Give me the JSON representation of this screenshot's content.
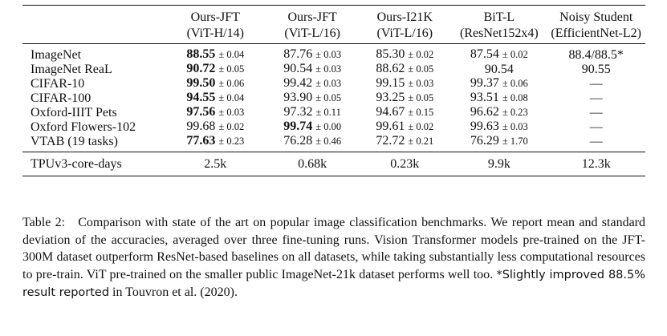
{
  "table": {
    "header": [
      {
        "line1": "",
        "line2": ""
      },
      {
        "line1": "Ours-JFT",
        "line2": "(ViT-H/14)"
      },
      {
        "line1": "Ours-JFT",
        "line2": "(ViT-L/16)"
      },
      {
        "line1": "Ours-I21K",
        "line2": "(ViT-L/16)"
      },
      {
        "line1": "BiT-L",
        "line2": "(ResNet152x4)"
      },
      {
        "line1": "Noisy Student",
        "line2": "(EfficientNet-L2)"
      }
    ],
    "rows": [
      {
        "label": "ImageNet",
        "cells": [
          {
            "value": "88.55",
            "pm": "± 0.04",
            "bold": true
          },
          {
            "value": "87.76",
            "pm": "± 0.03",
            "bold": false
          },
          {
            "value": "85.30",
            "pm": "± 0.02",
            "bold": false
          },
          {
            "value": "87.54",
            "pm": "± 0.02",
            "bold": false
          },
          {
            "value": "88.4/88.5*",
            "pm": "",
            "bold": false
          }
        ]
      },
      {
        "label": "ImageNet ReaL",
        "cells": [
          {
            "value": "90.72",
            "pm": "± 0.05",
            "bold": true
          },
          {
            "value": "90.54",
            "pm": "± 0.03",
            "bold": false
          },
          {
            "value": "88.62",
            "pm": "± 0.05",
            "bold": false
          },
          {
            "value": "90.54",
            "pm": "",
            "bold": false
          },
          {
            "value": "90.55",
            "pm": "",
            "bold": false
          }
        ]
      },
      {
        "label": "CIFAR-10",
        "cells": [
          {
            "value": "99.50",
            "pm": "± 0.06",
            "bold": true
          },
          {
            "value": "99.42",
            "pm": "± 0.03",
            "bold": false
          },
          {
            "value": "99.15",
            "pm": "± 0.03",
            "bold": false
          },
          {
            "value": "99.37",
            "pm": "± 0.06",
            "bold": false
          },
          {
            "value": "—",
            "pm": "",
            "bold": false
          }
        ]
      },
      {
        "label": "CIFAR-100",
        "cells": [
          {
            "value": "94.55",
            "pm": "± 0.04",
            "bold": true
          },
          {
            "value": "93.90",
            "pm": "± 0.05",
            "bold": false
          },
          {
            "value": "93.25",
            "pm": "± 0.05",
            "bold": false
          },
          {
            "value": "93.51",
            "pm": "± 0.08",
            "bold": false
          },
          {
            "value": "—",
            "pm": "",
            "bold": false
          }
        ]
      },
      {
        "label": "Oxford-IIIT Pets",
        "cells": [
          {
            "value": "97.56",
            "pm": "± 0.03",
            "bold": true
          },
          {
            "value": "97.32",
            "pm": "± 0.11",
            "bold": false
          },
          {
            "value": "94.67",
            "pm": "± 0.15",
            "bold": false
          },
          {
            "value": "96.62",
            "pm": "± 0.23",
            "bold": false
          },
          {
            "value": "—",
            "pm": "",
            "bold": false
          }
        ]
      },
      {
        "label": "Oxford Flowers-102",
        "cells": [
          {
            "value": "99.68",
            "pm": "± 0.02",
            "bold": false
          },
          {
            "value": "99.74",
            "pm": "± 0.00",
            "bold": true
          },
          {
            "value": "99.61",
            "pm": "± 0.02",
            "bold": false
          },
          {
            "value": "99.63",
            "pm": "± 0.03",
            "bold": false
          },
          {
            "value": "—",
            "pm": "",
            "bold": false
          }
        ]
      },
      {
        "label": "VTAB (19 tasks)",
        "cells": [
          {
            "value": "77.63",
            "pm": "± 0.23",
            "bold": true
          },
          {
            "value": "76.28",
            "pm": "± 0.46",
            "bold": false
          },
          {
            "value": "72.72",
            "pm": "± 0.21",
            "bold": false
          },
          {
            "value": "76.29",
            "pm": "± 1.70",
            "bold": false
          },
          {
            "value": "—",
            "pm": "",
            "bold": false
          }
        ]
      }
    ],
    "footer_row": {
      "label": "TPUv3-core-days",
      "cells": [
        "2.5k",
        "0.68k",
        "0.23k",
        "9.9k",
        "12.3k"
      ]
    }
  },
  "caption": {
    "prefix": "Table 2:",
    "body": "Comparison with state of the art on popular image classification benchmarks. We report mean and standard deviation of the accuracies, averaged over three fine-tuning runs. Vision Transformer models pre-trained on the JFT-300M dataset outperform ResNet-based baselines on all datasets, while taking substantially less computational resources to pre-train. ViT pre-trained on the smaller public ImageNet-21k dataset performs well too.",
    "footnote_sans": "*Slightly improved 88.5% result reported",
    "footnote_tail": "in Touvron et al. (2020)."
  }
}
